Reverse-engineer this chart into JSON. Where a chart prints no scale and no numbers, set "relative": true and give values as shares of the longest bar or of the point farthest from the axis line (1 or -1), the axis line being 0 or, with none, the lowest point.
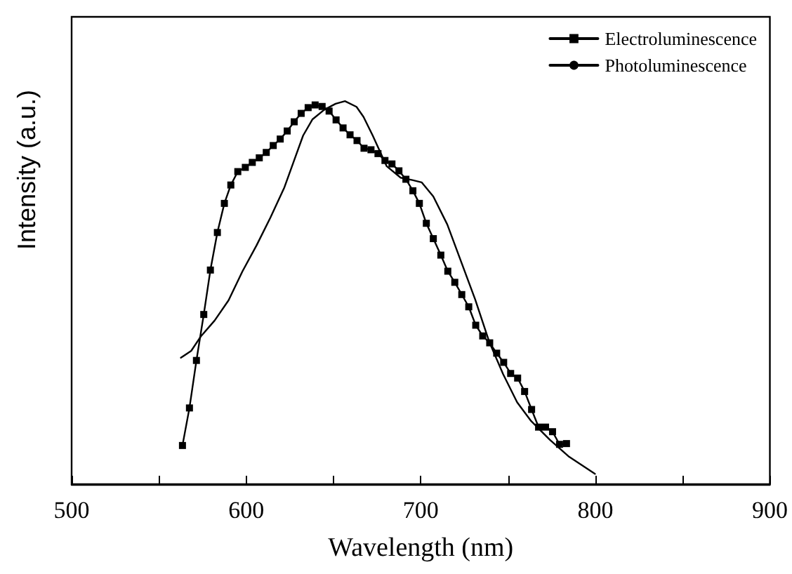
{
  "chart_data": {
    "type": "line",
    "relative": true,
    "xlabel": "Wavelength (nm)",
    "ylabel": "Intensity (a.u.)",
    "xlim": [
      500,
      900
    ],
    "xticks": [
      500,
      {
        "value": 550,
        "label": null
      },
      600,
      {
        "value": 650,
        "label": null
      },
      700,
      {
        "value": 750,
        "label": null
      },
      800,
      {
        "value": 850,
        "label": null
      },
      900
    ],
    "legend": "top right",
    "grid": false,
    "series": [
      {
        "name": "Electroluminescence",
        "color": "#000000",
        "marker": "square",
        "x": [
          563.5,
          567.5,
          571.5,
          575.7,
          579.5,
          583.5,
          587.5,
          591.2,
          595.2,
          599.5,
          603.5,
          607.5,
          611.5,
          615.5,
          619.5,
          623.5,
          627.5,
          631.5,
          635.5,
          639.5,
          643.5,
          647.5,
          651.5,
          655.5,
          659.5,
          663.5,
          667.5,
          671.5,
          675.5,
          679.5,
          683.5,
          687.5,
          691.5,
          695.5,
          699.2,
          703.2,
          707.2,
          711.5,
          715.5,
          719.5,
          723.5,
          727.5,
          731.5,
          735.5,
          739.5,
          743.5,
          747.5,
          751.5,
          755.5,
          759.5,
          763.5,
          767.5,
          771.5,
          775.5,
          779.5,
          783.5
        ],
        "values": [
          0.101,
          0.199,
          0.323,
          0.443,
          0.559,
          0.657,
          0.733,
          0.781,
          0.816,
          0.827,
          0.84,
          0.852,
          0.866,
          0.884,
          0.901,
          0.922,
          0.946,
          0.968,
          0.983,
          0.99,
          0.986,
          0.974,
          0.951,
          0.93,
          0.912,
          0.897,
          0.877,
          0.873,
          0.863,
          0.845,
          0.836,
          0.818,
          0.796,
          0.766,
          0.733,
          0.681,
          0.641,
          0.598,
          0.556,
          0.527,
          0.495,
          0.463,
          0.415,
          0.387,
          0.369,
          0.342,
          0.318,
          0.289,
          0.277,
          0.242,
          0.195,
          0.149,
          0.149,
          0.137,
          0.104,
          0.106
        ]
      },
      {
        "name": "Photoluminescence",
        "color": "#000000",
        "marker": "none",
        "x": [
          562.6,
          568.5,
          573.9,
          581.9,
          589.9,
          597.9,
          605.9,
          613.9,
          621.9,
          627.2,
          632.6,
          637.9,
          644.6,
          651.2,
          656.6,
          663.2,
          667.2,
          672.5,
          680.5,
          688.5,
          695.2,
          700.5,
          707.2,
          715.2,
          723.2,
          731.2,
          739.2,
          747.2,
          755.2,
          763.2,
          773.9,
          784.6,
          799.8
        ],
        "values": [
          0.33,
          0.348,
          0.385,
          0.427,
          0.48,
          0.556,
          0.623,
          0.696,
          0.775,
          0.842,
          0.91,
          0.952,
          0.977,
          0.993,
          1,
          0.985,
          0.959,
          0.91,
          0.83,
          0.8,
          0.794,
          0.788,
          0.751,
          0.678,
          0.58,
          0.482,
          0.372,
          0.287,
          0.214,
          0.165,
          0.116,
          0.073,
          0.027
        ]
      }
    ]
  }
}
